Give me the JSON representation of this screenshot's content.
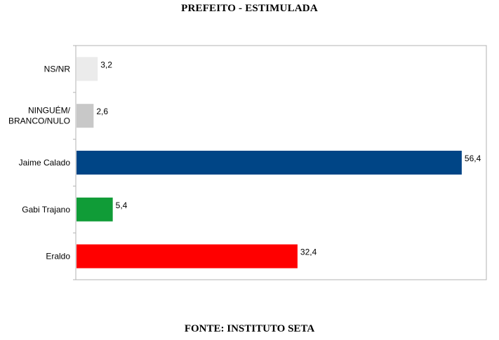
{
  "header": {
    "title": "PREFEITO - ESTIMULADA"
  },
  "footer": {
    "source": "FONTE: INSTITUTO SETA"
  },
  "chart_data": {
    "type": "bar",
    "orientation": "horizontal",
    "title": "PREFEITO - ESTIMULADA",
    "categories": [
      [
        "NS/NR"
      ],
      [
        "NINGUÉM/",
        "BRANCO/NULO"
      ],
      [
        "Jaime Calado"
      ],
      [
        "Gabi Trajano"
      ],
      [
        "Eraldo"
      ]
    ],
    "values": [
      3.2,
      2.6,
      56.4,
      5.4,
      32.4
    ],
    "value_labels": [
      "3,2",
      "2,6",
      "56,4",
      "5,4",
      "32,4"
    ],
    "colors": [
      "#ebebeb",
      "#c8c8c8",
      "#004586",
      "#109c37",
      "#ff0000"
    ],
    "xlim": [
      0,
      60
    ],
    "grid": false,
    "legend": "none"
  }
}
